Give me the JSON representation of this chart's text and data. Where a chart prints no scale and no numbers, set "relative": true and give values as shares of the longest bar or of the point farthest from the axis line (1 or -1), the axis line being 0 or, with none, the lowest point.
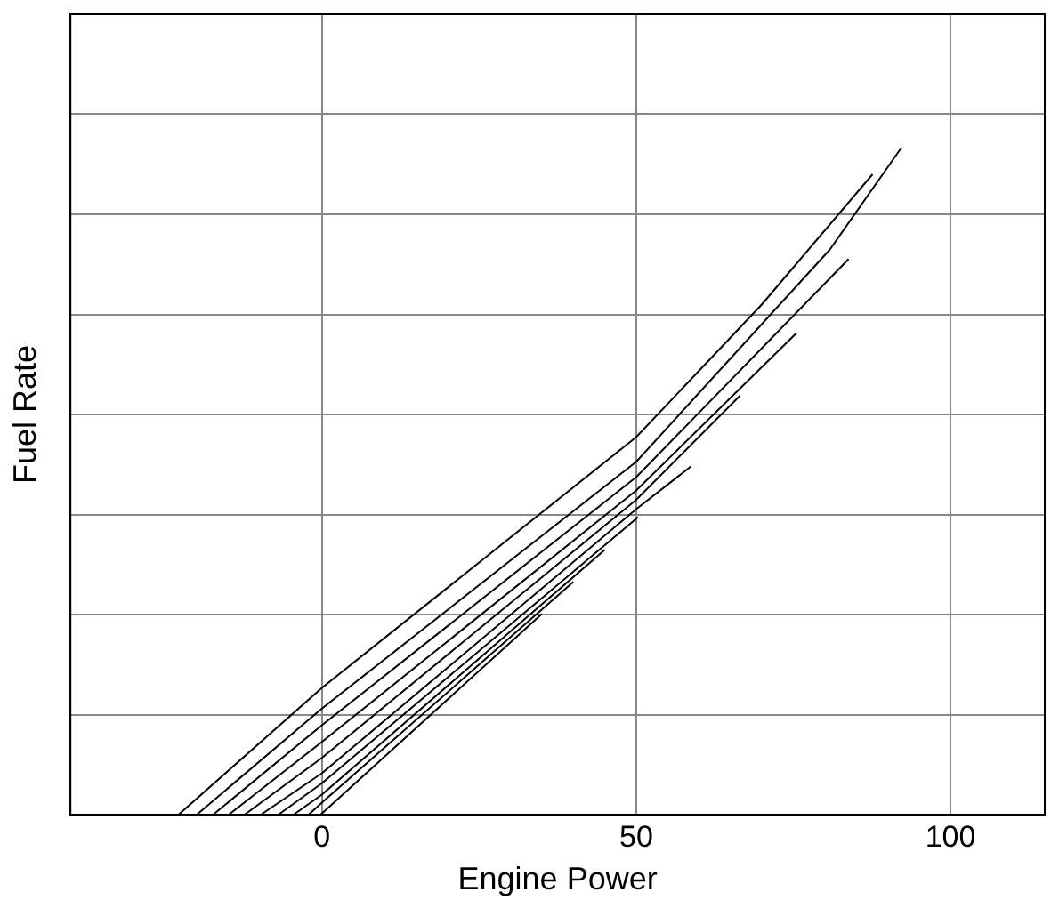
{
  "chart_data": {
    "type": "line",
    "xlabel": "Engine Power",
    "ylabel": "Fuel Rate",
    "relative": true,
    "xlim": [
      -40,
      115
    ],
    "xticks": [
      0,
      50,
      100
    ],
    "tick_labels": "x",
    "grid": true,
    "marker": "none",
    "line_style": "solid",
    "series": [
      {
        "color": "#000000",
        "x": [
          -22.8,
          0,
          50,
          70,
          87.6
        ],
        "values": [
          0,
          0.19,
          0.566,
          0.765,
          0.96
        ]
      },
      {
        "color": "#000000",
        "x": [
          -19.9,
          0,
          50,
          80.8,
          92.2
        ],
        "values": [
          0,
          0.159,
          0.529,
          0.847,
          1
        ]
      },
      {
        "color": "#000000",
        "x": [
          -17.3,
          0,
          50,
          83.8
        ],
        "values": [
          0,
          0.134,
          0.506,
          0.833
        ]
      },
      {
        "color": "#000000",
        "x": [
          -14.8,
          0,
          50,
          75.5
        ],
        "values": [
          0,
          0.109,
          0.486,
          0.722
        ]
      },
      {
        "color": "#000000",
        "x": [
          -12.3,
          0,
          50,
          66.5
        ],
        "values": [
          0,
          0.085,
          0.472,
          0.628
        ]
      },
      {
        "color": "#000000",
        "x": [
          -9.7,
          0,
          50,
          58.7
        ],
        "values": [
          0,
          0.062,
          0.458,
          0.522
        ]
      },
      {
        "color": "#000000",
        "x": [
          -6.9,
          0,
          50.3
        ],
        "values": [
          0,
          0.047,
          0.446
        ]
      },
      {
        "color": "#000000",
        "x": [
          -4.5,
          0,
          45
        ],
        "values": [
          0,
          0.03,
          0.397
        ]
      },
      {
        "color": "#000000",
        "x": [
          -2.1,
          0,
          40
        ],
        "values": [
          0,
          0.018,
          0.349
        ]
      },
      {
        "color": "#000000",
        "x": [
          -0.2,
          35
        ],
        "values": [
          0,
          0.301
        ]
      }
    ]
  }
}
